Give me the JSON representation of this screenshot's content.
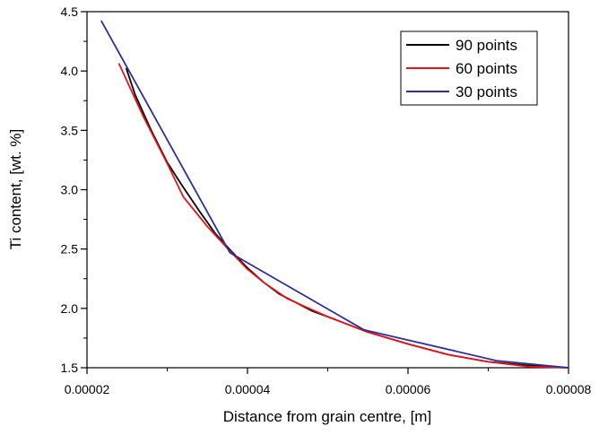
{
  "chart_data": {
    "type": "line",
    "xlabel": "Distance from grain centre, [m]",
    "ylabel": "Ti content, [wt. %]",
    "xlim": [
      2e-05,
      8e-05
    ],
    "ylim": [
      1.5,
      4.5
    ],
    "x_ticks": [
      2e-05,
      4e-05,
      6e-05,
      8e-05
    ],
    "x_tick_labels": [
      "0.00002",
      "0.00004",
      "0.00006",
      "0.00008"
    ],
    "y_ticks": [
      1.5,
      2.0,
      2.5,
      3.0,
      3.5,
      4.0,
      4.5
    ],
    "y_tick_labels": [
      "1.5",
      "2.0",
      "2.5",
      "3.0",
      "3.5",
      "4.0",
      "4.5"
    ],
    "grid": false,
    "legend_position": "top-right",
    "series": [
      {
        "name": "90 points",
        "color": "#000000",
        "x": [
          2.49e-05,
          2.6e-05,
          2.8e-05,
          3e-05,
          3.2e-05,
          3.4e-05,
          3.6e-05,
          3.8e-05,
          4e-05,
          4.2e-05,
          4.4e-05,
          4.6e-05,
          4.8e-05,
          5e-05,
          5.5e-05,
          6e-05,
          6.5e-05,
          7e-05,
          7.5e-05,
          8e-05
        ],
        "y": [
          4.02,
          3.8,
          3.5,
          3.23,
          3.02,
          2.82,
          2.63,
          2.48,
          2.34,
          2.22,
          2.12,
          2.05,
          1.98,
          1.93,
          1.8,
          1.7,
          1.61,
          1.55,
          1.52,
          1.5
        ]
      },
      {
        "name": "60 points",
        "color": "#e8141b",
        "x": [
          2.4e-05,
          2.7e-05,
          3e-05,
          3.2e-05,
          3.5e-05,
          3.8e-05,
          4e-05,
          4.2e-05,
          4.5e-05,
          4.8e-05,
          5e-05,
          5.5e-05,
          6e-05,
          6.5e-05,
          7e-05,
          7.5e-05,
          8e-05
        ],
        "y": [
          4.06,
          3.62,
          3.22,
          2.94,
          2.69,
          2.47,
          2.33,
          2.22,
          2.08,
          1.99,
          1.93,
          1.8,
          1.7,
          1.61,
          1.55,
          1.51,
          1.5
        ]
      },
      {
        "name": "30 points",
        "color": "#2d2f9a",
        "x": [
          2.18e-05,
          3.78e-05,
          5.45e-05,
          7.1e-05,
          8e-05
        ],
        "y": [
          4.42,
          2.47,
          1.82,
          1.56,
          1.5
        ]
      }
    ]
  }
}
